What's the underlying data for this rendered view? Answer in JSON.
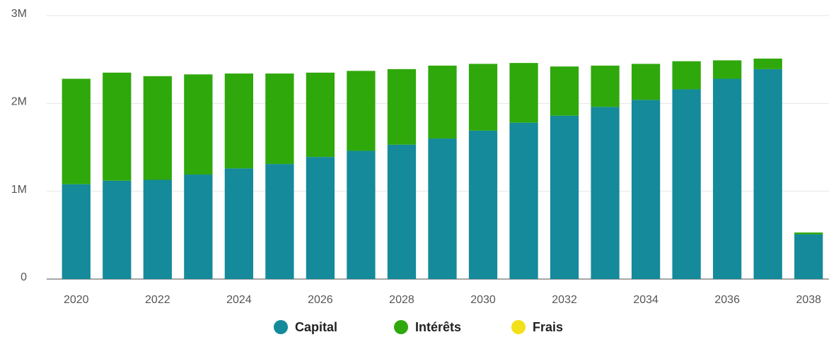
{
  "chart_data": {
    "type": "bar",
    "stacked": true,
    "categories": [
      "2020",
      null,
      "2022",
      null,
      "2024",
      null,
      "2026",
      null,
      "2028",
      null,
      "2030",
      null,
      "2032",
      null,
      "2034",
      null,
      "2036",
      null,
      "2038"
    ],
    "series": [
      {
        "name": "Capital",
        "color": "#148a9b",
        "values": [
          1080000,
          1120000,
          1130000,
          1190000,
          1260000,
          1310000,
          1390000,
          1460000,
          1530000,
          1600000,
          1690000,
          1780000,
          1860000,
          1960000,
          2040000,
          2160000,
          2280000,
          2390000,
          510000
        ]
      },
      {
        "name": "Intérêts",
        "color": "#2fa80c",
        "values": [
          1200000,
          1230000,
          1180000,
          1140000,
          1080000,
          1030000,
          960000,
          910000,
          860000,
          830000,
          760000,
          680000,
          560000,
          470000,
          410000,
          320000,
          210000,
          120000,
          20000
        ]
      },
      {
        "name": "Frais",
        "color": "#f2e01a",
        "values": [
          0,
          0,
          0,
          0,
          0,
          0,
          0,
          0,
          0,
          0,
          0,
          0,
          0,
          0,
          0,
          0,
          0,
          0,
          0
        ]
      }
    ],
    "ylim": [
      0,
      3000000
    ],
    "yticks": [
      0,
      {
        "value": 1000000,
        "label": "1M"
      },
      {
        "value": 2000000,
        "label": "2M"
      },
      {
        "value": 3000000,
        "label": "3M"
      }
    ],
    "grid": true,
    "legend": "bottom"
  }
}
